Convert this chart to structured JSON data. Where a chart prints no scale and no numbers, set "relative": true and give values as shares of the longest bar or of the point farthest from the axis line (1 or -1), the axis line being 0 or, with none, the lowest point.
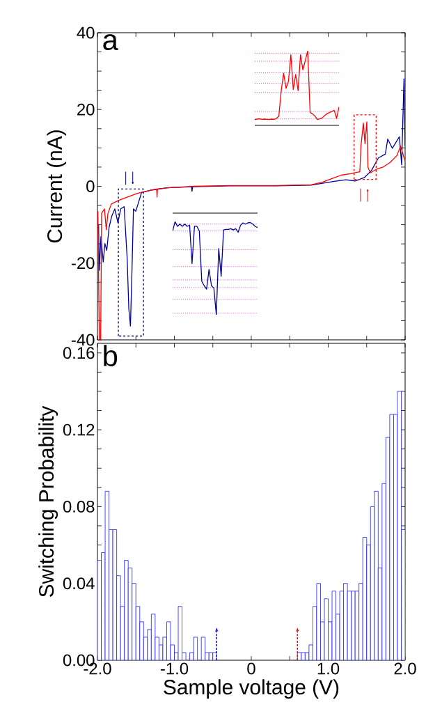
{
  "chart_data": [
    {
      "type": "line",
      "title": "a",
      "ylabel": "Current (nA)",
      "xlim": [
        -2,
        2
      ],
      "ylim": [
        -40,
        40
      ],
      "tick_labels": "y",
      "xticks": [
        -2,
        -1.5,
        -1,
        -0.5,
        0,
        0.5,
        1,
        1.5,
        2
      ],
      "yticks": [
        -40,
        {
          "value": -35,
          "label": null
        },
        {
          "value": -30,
          "label": null
        },
        {
          "value": -25,
          "label": null
        },
        -20,
        {
          "value": -15,
          "label": null
        },
        {
          "value": -10,
          "label": null
        },
        {
          "value": -5,
          "label": null
        },
        0,
        {
          "value": 5,
          "label": null
        },
        {
          "value": 10,
          "label": null
        },
        {
          "value": 15,
          "label": null
        },
        20,
        {
          "value": 25,
          "label": null
        },
        {
          "value": 30,
          "label": null
        },
        {
          "value": 35,
          "label": null
        },
        40
      ],
      "series": [
        {
          "color": "#000099",
          "x": [
            -1.985,
            -1.976,
            -1.955,
            -1.925,
            -1.903,
            -1.879,
            -1.849,
            -1.813,
            -1.774,
            -1.734,
            -1.698,
            -1.653,
            -1.614,
            -1.592,
            -1.571,
            -1.553,
            -1.532,
            -1.502,
            -1.472,
            -1.426,
            -1.306,
            -1.094,
            -0.777,
            -0.771,
            -0.762,
            -0.279,
            0.325,
            0.777,
            0.928,
            1.079,
            1.23,
            1.351,
            1.472,
            1.562,
            1.653,
            1.743,
            1.774,
            1.834,
            1.925,
            1.955,
            1.985,
            2.0
          ],
          "values": [
            -10,
            -21.9,
            -13.1,
            -19.7,
            -14.9,
            -16.7,
            -10.7,
            -7.7,
            -5.9,
            -9.5,
            -5.9,
            -5.3,
            -18.6,
            -31.9,
            -36.4,
            -23.4,
            -5.9,
            -6.5,
            -4.6,
            -1.6,
            -1.0,
            -0.4,
            -0.1,
            -1.3,
            -0.1,
            0.1,
            0.1,
            0.3,
            0.8,
            1.3,
            1.7,
            1.4,
            2.3,
            4.1,
            7.4,
            8.4,
            12.3,
            9.9,
            12.9,
            5.6,
            28.0,
            10.5
          ]
        },
        {
          "color": "#ff0000",
          "x": [
            -1.994,
            -1.976,
            -1.958,
            -1.946,
            -1.909,
            -1.885,
            -1.864,
            -1.819,
            -1.728,
            -1.608,
            -1.487,
            -1.366,
            -1.23,
            -1.225,
            -1.22,
            -1.034,
            -0.732,
            -0.279,
            0.325,
            0.777,
            0.928,
            1.049,
            1.17,
            1.291,
            1.411,
            1.426,
            1.457,
            1.478,
            1.502,
            1.517,
            1.547,
            1.623,
            1.713,
            1.804,
            1.894,
            1.94,
            2.0
          ],
          "values": [
            -6.5,
            -40,
            -40,
            -7,
            -5.9,
            -11.3,
            -7.1,
            -4.6,
            -3.7,
            -2.8,
            -1.9,
            -1.3,
            -0.7,
            -2.8,
            -0.7,
            -0.3,
            0,
            0.2,
            0.2,
            0.4,
            1.1,
            2.0,
            2.9,
            3.3,
            3.8,
            10.5,
            16.5,
            11.1,
            16.8,
            5,
            3.5,
            4.4,
            5,
            6.2,
            8,
            10.5,
            6.5
          ]
        }
      ]
    },
    {
      "type": "line",
      "relative": true,
      "categories": [
        null,
        null,
        null,
        null,
        null,
        null,
        null,
        null,
        null,
        null,
        null,
        null,
        null,
        null,
        null,
        null,
        null,
        null,
        null,
        null,
        null,
        null,
        null,
        null,
        null,
        null,
        null,
        null,
        null,
        null,
        null,
        null,
        null,
        null,
        null,
        null
      ],
      "series": [
        {
          "color": "#ff0000",
          "values": [
            0.078,
            0.084,
            0.087,
            0.081,
            0.084,
            0.081,
            0.078,
            0.084,
            0.081,
            0.093,
            0.124,
            0.466,
            0.699,
            0.497,
            0.59,
            0.947,
            0.481,
            0.683,
            0.466,
            0.947,
            0.745,
            0.87,
            1.0,
            0.171,
            0.155,
            0.124,
            0.078,
            0.087,
            0.099,
            0.13,
            0.155,
            0.171,
            0.186,
            0.202,
            0.093,
            0.248
          ]
        }
      ],
      "ref_lines": [
        {
          "axis": "y",
          "value": 0.969,
          "color": "#e040e0",
          "line_style": "dotted"
        },
        {
          "axis": "y",
          "value": 0.86,
          "color": "#e040e0",
          "line_style": "dotted"
        },
        {
          "axis": "y",
          "value": 0.705,
          "color": "#e040e0",
          "line_style": "dotted"
        },
        {
          "axis": "y",
          "value": 0.565,
          "color": "#e040e0",
          "line_style": "dotted"
        },
        {
          "axis": "y",
          "value": 0.441,
          "color": "#e040e0",
          "line_style": "dotted"
        },
        {
          "axis": "y",
          "value": 0.186,
          "color": "#e040e0",
          "line_style": "dotted"
        },
        {
          "axis": "y",
          "value": 0.087,
          "color": "#e040e0",
          "line_style": "dotted"
        }
      ]
    },
    {
      "type": "line",
      "relative": true,
      "categories": [
        null,
        null,
        null,
        null,
        null,
        null,
        null,
        null,
        null,
        null,
        null,
        null,
        null,
        null,
        null,
        null,
        null,
        null,
        null,
        null,
        null,
        null,
        null,
        null,
        null,
        null,
        null,
        null,
        null,
        null,
        null,
        null,
        null,
        null,
        null,
        null
      ],
      "series": [
        {
          "color": "#000099",
          "values": [
            -0.176,
            -0.085,
            -0.13,
            -0.108,
            -0.13,
            -0.108,
            -0.13,
            -0.119,
            -0.497,
            -0.13,
            -0.13,
            -0.176,
            -0.67,
            -0.714,
            -0.748,
            -0.554,
            -0.714,
            -0.737,
            -1.0,
            -0.348,
            -0.622,
            -0.165,
            -0.16,
            -0.16,
            -0.153,
            -0.165,
            -0.153,
            -0.188,
            -0.119,
            -0.096,
            -0.108,
            -0.096,
            -0.092,
            -0.108,
            -0.13,
            -0.142
          ]
        }
      ],
      "ref_lines": [
        {
          "axis": "y",
          "value": -0.108,
          "color": "#e040e0",
          "line_style": "dotted"
        },
        {
          "axis": "y",
          "value": -0.176,
          "color": "#e040e0",
          "line_style": "dotted"
        },
        {
          "axis": "y",
          "value": -0.359,
          "color": "#e040e0",
          "line_style": "dotted"
        },
        {
          "axis": "y",
          "value": -0.526,
          "color": "#e040e0",
          "line_style": "dotted"
        },
        {
          "axis": "y",
          "value": -0.657,
          "color": "#e040e0",
          "line_style": "dotted"
        },
        {
          "axis": "y",
          "value": -0.732,
          "color": "#e040e0",
          "line_style": "dotted"
        },
        {
          "axis": "y",
          "value": -0.847,
          "color": "#e040e0",
          "line_style": "dotted"
        },
        {
          "axis": "y",
          "value": -0.984,
          "color": "#e040e0",
          "line_style": "dotted"
        }
      ]
    },
    {
      "type": "histogram",
      "title": "b",
      "xlabel": "Sample voltage (V)",
      "ylabel": "Switching Probability",
      "color": "#1a1aff",
      "xlim": [
        -2,
        2
      ],
      "ylim": [
        0,
        0.165
      ],
      "xticks": [
        {
          "value": -2,
          "label": "-2.0"
        },
        {
          "value": -1.5,
          "label": null
        },
        {
          "value": -1,
          "label": "-1.0"
        },
        {
          "value": -0.5,
          "label": null
        },
        0,
        {
          "value": 0.5,
          "label": null
        },
        {
          "value": 1,
          "label": "1.0"
        },
        {
          "value": 1.5,
          "label": null
        },
        {
          "value": 2,
          "label": "2.0"
        }
      ],
      "yticks": [
        {
          "value": 0,
          "label": "0.00"
        },
        {
          "value": 0.01,
          "label": null
        },
        {
          "value": 0.02,
          "label": null
        },
        {
          "value": 0.03,
          "label": null
        },
        {
          "value": 0.04,
          "label": "0.04"
        },
        {
          "value": 0.05,
          "label": null
        },
        {
          "value": 0.06,
          "label": null
        },
        {
          "value": 0.07,
          "label": null
        },
        {
          "value": 0.08,
          "label": "0.08"
        },
        {
          "value": 0.09,
          "label": null
        },
        {
          "value": 0.1,
          "label": null
        },
        {
          "value": 0.11,
          "label": null
        },
        {
          "value": 0.12,
          "label": "0.12"
        },
        {
          "value": 0.13,
          "label": null
        },
        {
          "value": 0.14,
          "label": null
        },
        {
          "value": 0.15,
          "label": null
        },
        {
          "value": 0.16,
          "label": "0.16"
        }
      ],
      "bins": [
        -2.0,
        -1.95,
        -1.9,
        -1.85,
        -1.8,
        -1.75,
        -1.7,
        -1.65,
        -1.6,
        -1.55,
        -1.5,
        -1.45,
        -1.4,
        -1.35,
        -1.3,
        -1.25,
        -1.2,
        -1.15,
        -1.1,
        -1.05,
        -1.0,
        -0.95,
        -0.9,
        -0.85,
        -0.8,
        -0.75,
        -0.7,
        -0.65,
        -0.6,
        -0.55,
        -0.5,
        -0.45,
        -0.4,
        -0.35,
        -0.3,
        -0.25,
        -0.2,
        -0.15,
        -0.1,
        -0.05,
        0.0,
        0.05,
        0.1,
        0.15,
        0.2,
        0.25,
        0.3,
        0.35,
        0.4,
        0.45,
        0.5,
        0.55,
        0.6,
        0.65,
        0.7,
        0.75,
        0.8,
        0.85,
        0.9,
        0.95,
        1.0,
        1.05,
        1.1,
        1.15,
        1.2,
        1.25,
        1.3,
        1.35,
        1.4,
        1.45,
        1.5,
        1.55,
        1.6,
        1.65,
        1.7,
        1.75,
        1.8,
        1.85,
        1.9,
        1.95,
        2.0
      ],
      "values": [
        0.052,
        0.056,
        0.088,
        0.068,
        0.068,
        0.044,
        0.028,
        0.052,
        0.048,
        0.04,
        0.028,
        0.02,
        0.012,
        0.016,
        0.024,
        0.012,
        0.008,
        0.012,
        0.02,
        0.008,
        0.004,
        0.028,
        0.004,
        0,
        0.004,
        0.012,
        0,
        0.012,
        0.004,
        0.004,
        0.004,
        0,
        0,
        0,
        0,
        0,
        0,
        0,
        0,
        0,
        0,
        0,
        0,
        0,
        0,
        0,
        0,
        0,
        0,
        0,
        0,
        0,
        0.004,
        0.004,
        0.004,
        0.008,
        0.028,
        0.04,
        0.02,
        0.032,
        0.02,
        0.036,
        0.024,
        0.036,
        0.04,
        0.036,
        0.036,
        0.036,
        0.04,
        0.064,
        0.06,
        0.08,
        0.088,
        0.048,
        0.092,
        0.116,
        0.128,
        0.128,
        0.14,
        0.068
      ]
    }
  ]
}
